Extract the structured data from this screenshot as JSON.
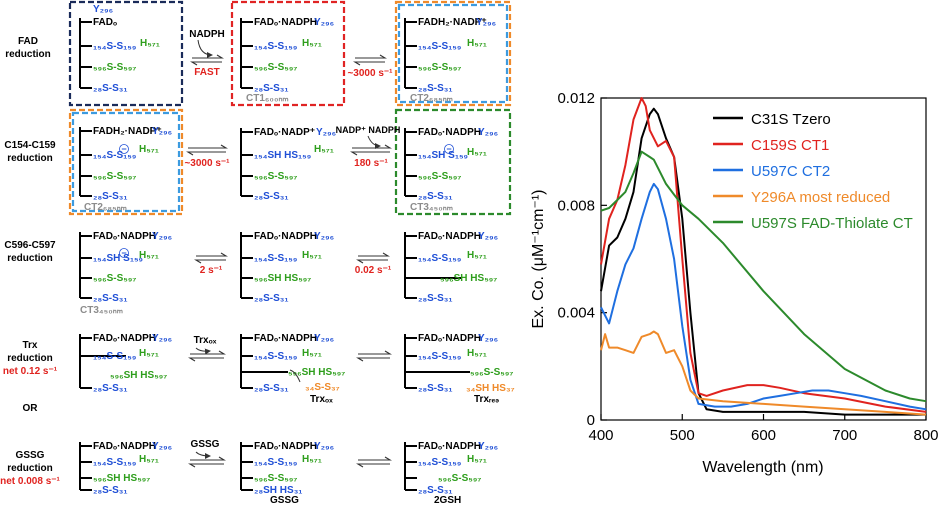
{
  "colors": {
    "black": "#000000",
    "blue": "#1f4fd6",
    "green": "#2e9e1c",
    "red": "#e0231f",
    "orange": "#ef8a2a",
    "gray": "#8c8c8c",
    "navy": "#1a2b5a",
    "box_red": "#e02424",
    "box_blue": "#3c9be0",
    "box_orange": "#ef8a2a",
    "box_green": "#2c8a2c"
  },
  "rows": [
    {
      "label_1": "FAD",
      "label_2": "reduction"
    },
    {
      "label_1": "C154-C159",
      "label_2": "reduction"
    },
    {
      "label_1": "C596-C597",
      "label_2": "reduction"
    },
    {
      "label_1": "Trx",
      "label_2": "reduction",
      "rate": "net 0.12 s⁻¹"
    },
    {
      "label_1": "GSSG",
      "label_2": "reduction",
      "rate": "net 0.008 s⁻¹"
    }
  ],
  "or_label": "OR",
  "species": {
    "fad_o": "FADₒ",
    "fad_o_nadph": "FADₒ·NADPH",
    "fad_o_nadp": "FADₒ·NADP⁺",
    "fadh2_nadp": "FADH₂·NADP⁺",
    "y296": "Y₂₉₆",
    "h571": "H₅₇₁",
    "s154_s159": "₁₅₄S-S₁₅₉",
    "s154_sh_hs159": "₁₅₄SH HS₁₅₉",
    "s154_sh_s159": "₁₅₄SH  S₁₅₉",
    "s596_s597": "₅₉₆S-S₅₉₇",
    "s596_sh_hs597": "₅₉₆SH HS₅₉₇",
    "s28_s31": "₂₈S-S₃₁",
    "s28_sh_hs31": "₂₈SH HS₃₁",
    "s34_s37": "₃₄S-S₃₇",
    "s34_sh_hs37": "₃₄SH HS₃₇",
    "minus": "−"
  },
  "state_labels": {
    "ct1": "CT1₆₀₀ₙₘ",
    "ct2": "CT2₆₈₅ₙₘ",
    "ct3": "CT3₄₅₀ₙₘ",
    "trx_ox": "Trxₒₓ",
    "trx_red": "Trxᵣₑₔ",
    "gssg": "GSSG",
    "gsh": "2GSH"
  },
  "rates": {
    "fast": "FAST",
    "r1": "~3000 s⁻¹",
    "r2": "~3000 s⁻¹",
    "r3": "180 s⁻¹",
    "r4": "2 s⁻¹",
    "r5": "0.02 s⁻¹"
  },
  "reagents": {
    "nadph": "NADPH",
    "nadp_nadph": "NADP⁺ NADPH",
    "trx_ox": "Trxₒₓ",
    "gssg": "GSSG"
  },
  "chart_data": {
    "type": "line",
    "title": "",
    "xlabel": "Wavelength (nm)",
    "ylabel": "Ex. Co. (μM⁻¹cm⁻¹)",
    "xlim": [
      400,
      800
    ],
    "ylim": [
      0,
      0.012
    ],
    "x_ticks": [
      400,
      500,
      600,
      700,
      800
    ],
    "y_ticks": [
      0,
      0.004,
      0.008,
      0.012
    ],
    "x_tick_labels": [
      "400",
      "500",
      "600",
      "700",
      "800"
    ],
    "y_tick_labels": [
      "0",
      "0.004",
      "0.008",
      "0.012"
    ],
    "legend_position": "top-right",
    "series": [
      {
        "name": "C31S Tzero",
        "color": "#000000",
        "x": [
          400,
          410,
          420,
          430,
          440,
          450,
          460,
          465,
          470,
          480,
          490,
          500,
          510,
          520,
          530,
          550,
          600,
          650,
          700,
          750,
          800
        ],
        "y": [
          0.0048,
          0.0065,
          0.0068,
          0.0075,
          0.0085,
          0.0105,
          0.0114,
          0.0116,
          0.0114,
          0.0105,
          0.0098,
          0.0075,
          0.004,
          0.001,
          0.0004,
          0.0003,
          0.0003,
          0.0003,
          0.0002,
          0.0002,
          0.0002
        ]
      },
      {
        "name": "C159S CT1",
        "color": "#e0231f",
        "x": [
          400,
          410,
          420,
          430,
          440,
          450,
          455,
          460,
          470,
          480,
          490,
          500,
          510,
          520,
          530,
          550,
          580,
          600,
          620,
          650,
          700,
          750,
          800
        ],
        "y": [
          0.0058,
          0.0075,
          0.0082,
          0.0095,
          0.0112,
          0.012,
          0.0117,
          0.0108,
          0.0102,
          0.0104,
          0.0098,
          0.006,
          0.0025,
          0.001,
          0.0009,
          0.0011,
          0.0013,
          0.0013,
          0.0012,
          0.001,
          0.0008,
          0.0005,
          0.0003
        ]
      },
      {
        "name": "U597C CT2",
        "color": "#1f6fe0",
        "x": [
          400,
          410,
          420,
          430,
          440,
          450,
          460,
          465,
          470,
          480,
          490,
          500,
          510,
          520,
          540,
          560,
          580,
          600,
          620,
          640,
          660,
          680,
          700,
          720,
          750,
          780,
          800
        ],
        "y": [
          0.0042,
          0.0036,
          0.0048,
          0.0058,
          0.0064,
          0.0075,
          0.0085,
          0.0088,
          0.0086,
          0.0075,
          0.006,
          0.0035,
          0.0015,
          0.0006,
          0.0005,
          0.0005,
          0.0006,
          0.0008,
          0.0009,
          0.001,
          0.0011,
          0.0011,
          0.001,
          0.0009,
          0.0007,
          0.0005,
          0.0004
        ]
      },
      {
        "name": "Y296A most reduced",
        "color": "#ef8a2a",
        "x": [
          400,
          405,
          410,
          420,
          430,
          440,
          450,
          460,
          465,
          470,
          480,
          490,
          500,
          510,
          520,
          550,
          600,
          650,
          700,
          750,
          800
        ],
        "y": [
          0.0026,
          0.0032,
          0.0027,
          0.0027,
          0.0026,
          0.0025,
          0.0031,
          0.0032,
          0.0033,
          0.0032,
          0.0025,
          0.0026,
          0.002,
          0.0011,
          0.0008,
          0.0007,
          0.0006,
          0.0005,
          0.0004,
          0.0003,
          0.0002
        ]
      },
      {
        "name": "U597S FAD-Thiolate CT",
        "color": "#2c8a2c",
        "x": [
          400,
          410,
          420,
          430,
          440,
          450,
          460,
          465,
          470,
          480,
          490,
          500,
          520,
          550,
          600,
          650,
          700,
          750,
          780,
          800
        ],
        "y": [
          0.0078,
          0.0079,
          0.0082,
          0.0085,
          0.0092,
          0.01,
          0.0098,
          0.0097,
          0.0094,
          0.0088,
          0.0084,
          0.008,
          0.0075,
          0.0066,
          0.0048,
          0.0032,
          0.0019,
          0.0011,
          0.0008,
          0.0007
        ]
      }
    ]
  }
}
